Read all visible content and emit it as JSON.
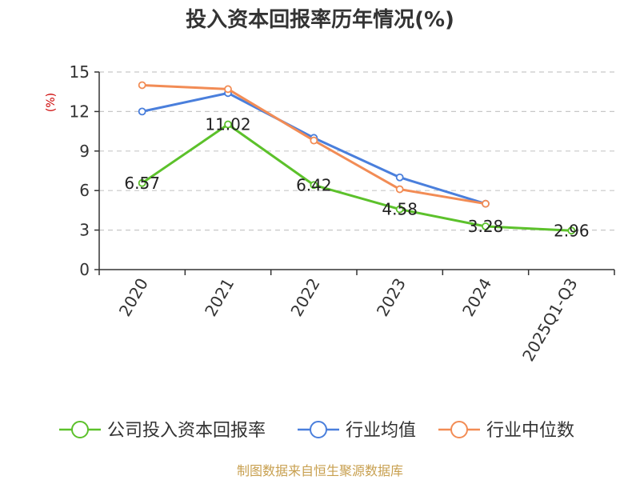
{
  "chart_data": {
    "type": "line",
    "title": "投入资本回报率历年情况(%)",
    "ylabel": "(%)",
    "xlabel": "",
    "categories": [
      "2020",
      "2021",
      "2022",
      "2023",
      "2024",
      "2025Q1-Q3"
    ],
    "ylim": [
      0,
      15
    ],
    "yticks": [
      0,
      3,
      6,
      9,
      12,
      15
    ],
    "grid": true,
    "legend_position": "bottom",
    "series": [
      {
        "name": "公司投入资本回报率",
        "color": "#5cc12b",
        "values": [
          6.57,
          11.02,
          6.42,
          4.58,
          3.28,
          2.96
        ],
        "labels": [
          "6.57",
          "11.02",
          "6.42",
          "4.58",
          "3.28",
          "2.96"
        ]
      },
      {
        "name": "行业均值",
        "color": "#4a7fdc",
        "values": [
          12.0,
          13.4,
          10.0,
          7.0,
          5.0,
          null
        ]
      },
      {
        "name": "行业中位数",
        "color": "#f28c55",
        "values": [
          14.0,
          13.7,
          9.8,
          6.1,
          5.0,
          null
        ]
      }
    ],
    "source": "制图数据来自恒生聚源数据库"
  }
}
